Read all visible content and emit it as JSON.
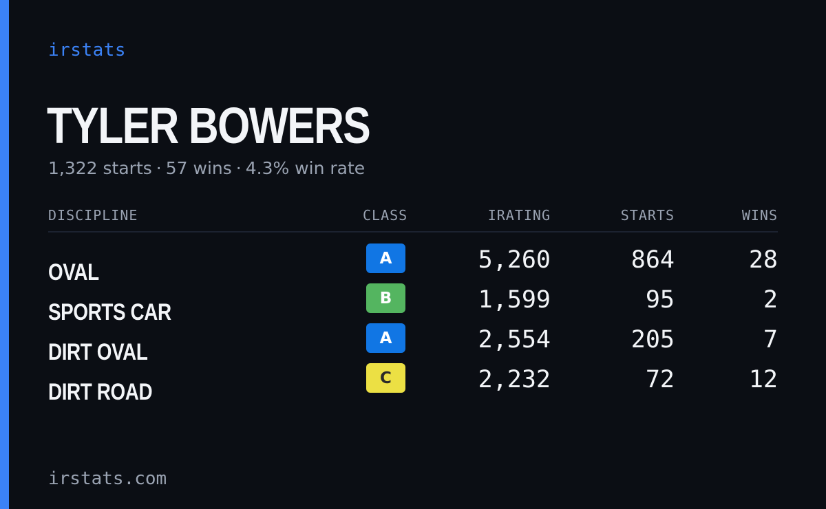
{
  "brand": "irstats",
  "driver": {
    "name": "TYLER BOWERS",
    "summary": {
      "starts": "1,322 starts",
      "wins": "57 wins",
      "win_rate": "4.3% win rate",
      "separator": "·"
    }
  },
  "table": {
    "headers": {
      "discipline": "DISCIPLINE",
      "class": "CLASS",
      "irating": "IRATING",
      "starts": "STARTS",
      "wins": "WINS"
    },
    "rows": [
      {
        "discipline": "OVAL",
        "class": "A",
        "class_bg": "#1176e4",
        "class_fg": "#ffffff",
        "irating": "5,260",
        "starts": "864",
        "wins": "28"
      },
      {
        "discipline": "SPORTS CAR",
        "class": "B",
        "class_bg": "#54b560",
        "class_fg": "#ffffff",
        "irating": "1,599",
        "starts": "95",
        "wins": "2"
      },
      {
        "discipline": "DIRT OVAL",
        "class": "A",
        "class_bg": "#1176e4",
        "class_fg": "#ffffff",
        "irating": "2,554",
        "starts": "205",
        "wins": "7"
      },
      {
        "discipline": "DIRT ROAD",
        "class": "C",
        "class_bg": "#ece044",
        "class_fg": "#2a2a2a",
        "irating": "2,232",
        "starts": "72",
        "wins": "12"
      }
    ]
  },
  "footer": "irstats.com",
  "colors": {
    "background": "#0b0e14",
    "accent": "#3b82f6",
    "text": "#f3f5f8",
    "muted": "#9aa3b2"
  }
}
